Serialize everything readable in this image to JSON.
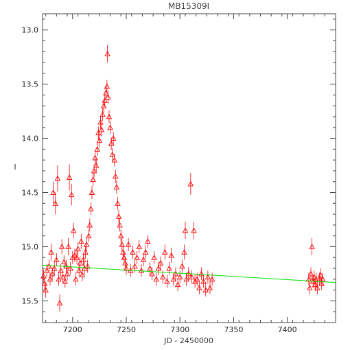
{
  "chart_data": {
    "type": "scatter",
    "title": "MB15309I",
    "xlabel": "JD - 2450000",
    "ylabel": "I",
    "xlim": [
      7172,
      7445
    ],
    "ylim": [
      15.7,
      12.85
    ],
    "y_inverted": true,
    "grid": false,
    "legend": "none",
    "x_ticks": [
      7200,
      7250,
      7300,
      7350,
      7400
    ],
    "y_ticks": [
      13.0,
      13.5,
      14.0,
      14.5,
      15.0,
      15.5
    ],
    "colors": {
      "points": "#ff0000",
      "model": "#00e000",
      "axes": "#444444"
    },
    "series": [
      {
        "kind": "points",
        "marker": "triangle",
        "error_bars": true,
        "points": [
          [
            7173,
            15.27,
            0.06
          ],
          [
            7174,
            15.34,
            0.06
          ],
          [
            7175,
            15.4,
            0.07
          ],
          [
            7176,
            15.22,
            0.06
          ],
          [
            7178,
            15.18,
            0.06
          ],
          [
            7179,
            15.3,
            0.06
          ],
          [
            7180,
            15.05,
            0.08
          ],
          [
            7181,
            15.25,
            0.06
          ],
          [
            7182,
            14.5,
            0.1
          ],
          [
            7183,
            15.2,
            0.06
          ],
          [
            7184,
            14.6,
            0.1
          ],
          [
            7185,
            15.12,
            0.06
          ],
          [
            7186,
            14.37,
            0.12
          ],
          [
            7187,
            15.3,
            0.06
          ],
          [
            7188,
            15.52,
            0.08
          ],
          [
            7189,
            15.22,
            0.06
          ],
          [
            7190,
            15.0,
            0.07
          ],
          [
            7191,
            15.28,
            0.06
          ],
          [
            7192,
            15.14,
            0.06
          ],
          [
            7193,
            15.32,
            0.06
          ],
          [
            7194,
            15.18,
            0.06
          ],
          [
            7195,
            15.25,
            0.06
          ],
          [
            7196,
            15.0,
            0.08
          ],
          [
            7197,
            14.36,
            0.12
          ],
          [
            7198,
            15.2,
            0.06
          ],
          [
            7199,
            14.52,
            0.1
          ],
          [
            7200,
            15.1,
            0.06
          ],
          [
            7201,
            14.85,
            0.07
          ],
          [
            7202,
            15.08,
            0.06
          ],
          [
            7203,
            15.3,
            0.06
          ],
          [
            7204,
            15.1,
            0.06
          ],
          [
            7205,
            15.02,
            0.06
          ],
          [
            7206,
            15.22,
            0.06
          ],
          [
            7207,
            15.15,
            0.06
          ],
          [
            7208,
            14.95,
            0.07
          ],
          [
            7209,
            15.26,
            0.06
          ],
          [
            7210,
            15.12,
            0.06
          ],
          [
            7211,
            15.2,
            0.06
          ],
          [
            7212,
            15.05,
            0.06
          ],
          [
            7213,
            14.98,
            0.06
          ],
          [
            7214,
            15.18,
            0.06
          ],
          [
            7215,
            14.9,
            0.06
          ],
          [
            7216,
            14.8,
            0.06
          ],
          [
            7217,
            14.65,
            0.06
          ],
          [
            7218,
            14.5,
            0.06
          ],
          [
            7219,
            14.38,
            0.06
          ],
          [
            7220,
            14.3,
            0.06
          ],
          [
            7221,
            14.18,
            0.06
          ],
          [
            7222,
            14.25,
            0.06
          ],
          [
            7223,
            14.1,
            0.06
          ],
          [
            7224,
            13.95,
            0.06
          ],
          [
            7225,
            14.02,
            0.06
          ],
          [
            7226,
            13.85,
            0.06
          ],
          [
            7227,
            13.92,
            0.06
          ],
          [
            7228,
            13.78,
            0.06
          ],
          [
            7229,
            13.7,
            0.06
          ],
          [
            7230,
            13.65,
            0.06
          ],
          [
            7231,
            13.58,
            0.06
          ],
          [
            7232,
            13.52,
            0.06
          ],
          [
            7232.5,
            13.22,
            0.08
          ],
          [
            7233,
            13.62,
            0.06
          ],
          [
            7234,
            13.8,
            0.06
          ],
          [
            7235,
            13.9,
            0.06
          ],
          [
            7236,
            14.05,
            0.06
          ],
          [
            7237,
            14.15,
            0.06
          ],
          [
            7238,
            14.0,
            0.06
          ],
          [
            7239,
            14.2,
            0.06
          ],
          [
            7240,
            14.35,
            0.06
          ],
          [
            7241,
            14.45,
            0.06
          ],
          [
            7242,
            14.6,
            0.06
          ],
          [
            7243,
            14.72,
            0.06
          ],
          [
            7244,
            14.8,
            0.06
          ],
          [
            7245,
            14.9,
            0.06
          ],
          [
            7246,
            14.98,
            0.06
          ],
          [
            7247,
            15.05,
            0.06
          ],
          [
            7248,
            15.1,
            0.06
          ],
          [
            7249,
            15.15,
            0.06
          ],
          [
            7250,
            15.2,
            0.06
          ],
          [
            7252,
            14.98,
            0.06
          ],
          [
            7254,
            15.22,
            0.06
          ],
          [
            7256,
            15.05,
            0.06
          ],
          [
            7258,
            15.18,
            0.06
          ],
          [
            7260,
            15.1,
            0.06
          ],
          [
            7262,
            15.0,
            0.06
          ],
          [
            7264,
            15.22,
            0.06
          ],
          [
            7266,
            15.12,
            0.06
          ],
          [
            7268,
            15.05,
            0.06
          ],
          [
            7270,
            14.95,
            0.06
          ],
          [
            7272,
            15.2,
            0.06
          ],
          [
            7274,
            15.25,
            0.06
          ],
          [
            7276,
            15.1,
            0.06
          ],
          [
            7278,
            15.3,
            0.06
          ],
          [
            7280,
            15.2,
            0.06
          ],
          [
            7282,
            15.15,
            0.06
          ],
          [
            7284,
            15.28,
            0.06
          ],
          [
            7286,
            15.05,
            0.07
          ],
          [
            7288,
            15.32,
            0.06
          ],
          [
            7290,
            15.2,
            0.06
          ],
          [
            7292,
            15.08,
            0.07
          ],
          [
            7294,
            15.3,
            0.06
          ],
          [
            7296,
            15.25,
            0.06
          ],
          [
            7298,
            15.35,
            0.06
          ],
          [
            7300,
            15.28,
            0.06
          ],
          [
            7302,
            15.18,
            0.06
          ],
          [
            7304,
            15.05,
            0.07
          ],
          [
            7305,
            14.85,
            0.08
          ],
          [
            7306,
            15.3,
            0.06
          ],
          [
            7308,
            15.25,
            0.06
          ],
          [
            7310,
            14.42,
            0.1
          ],
          [
            7311,
            15.28,
            0.06
          ],
          [
            7313,
            14.85,
            0.08
          ],
          [
            7314,
            15.32,
            0.06
          ],
          [
            7316,
            15.3,
            0.06
          ],
          [
            7318,
            15.38,
            0.06
          ],
          [
            7320,
            15.25,
            0.06
          ],
          [
            7322,
            15.32,
            0.06
          ],
          [
            7324,
            15.4,
            0.06
          ],
          [
            7326,
            15.28,
            0.06
          ],
          [
            7328,
            15.38,
            0.06
          ],
          [
            7330,
            15.3,
            0.06
          ],
          [
            7420,
            15.3,
            0.06
          ],
          [
            7421,
            15.38,
            0.06
          ],
          [
            7422,
            15.25,
            0.06
          ],
          [
            7423,
            15.0,
            0.08
          ],
          [
            7424,
            15.32,
            0.06
          ],
          [
            7425,
            15.28,
            0.06
          ],
          [
            7426,
            15.35,
            0.06
          ],
          [
            7427,
            15.3,
            0.06
          ],
          [
            7428,
            15.38,
            0.06
          ],
          [
            7430,
            15.3,
            0.06
          ],
          [
            7431,
            15.26,
            0.06
          ],
          [
            7432,
            15.34,
            0.06
          ],
          [
            7433,
            15.3,
            0.06
          ]
        ]
      },
      {
        "kind": "line",
        "points": [
          [
            7172,
            15.17
          ],
          [
            7445,
            15.33
          ]
        ]
      }
    ]
  }
}
